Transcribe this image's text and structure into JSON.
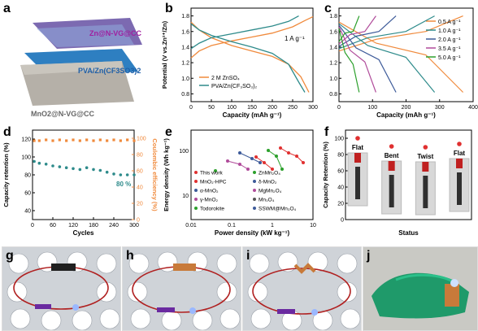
{
  "panels": {
    "a": {
      "letter": "a",
      "labels": [
        "Zn@N-VG@CC",
        "PVA/Zn(CF3SO3)2",
        "MnO2@N-VG@CC"
      ]
    },
    "b": {
      "letter": "b"
    },
    "c": {
      "letter": "c"
    },
    "d": {
      "letter": "d"
    },
    "e": {
      "letter": "e"
    },
    "f": {
      "letter": "f"
    },
    "g": {
      "letter": "g"
    },
    "h": {
      "letter": "h"
    },
    "i": {
      "letter": "i"
    },
    "j": {
      "letter": "j"
    }
  },
  "chart_data": [
    {
      "id": "b",
      "type": "line",
      "xlabel": "Capacity (mAh g⁻¹)",
      "ylabel": "Potential (V vs.Zn²⁺/Zn)",
      "xlim": [
        0,
        300
      ],
      "ylim": [
        0.7,
        1.9
      ],
      "xticks": [
        0,
        50,
        100,
        150,
        200,
        250,
        300
      ],
      "yticks": [
        0.8,
        1.0,
        1.2,
        1.4,
        1.6,
        1.8
      ],
      "annotation": "1 A g⁻¹",
      "series": [
        {
          "name": "2 M ZnSO₄",
          "color": "#f08a3c",
          "charge": [
            [
              0,
              1.26
            ],
            [
              20,
              1.35
            ],
            [
              50,
              1.42
            ],
            [
              100,
              1.48
            ],
            [
              150,
              1.53
            ],
            [
              200,
              1.58
            ],
            [
              250,
              1.66
            ],
            [
              280,
              1.74
            ],
            [
              300,
              1.79
            ]
          ],
          "discharge": [
            [
              0,
              1.72
            ],
            [
              20,
              1.62
            ],
            [
              50,
              1.52
            ],
            [
              100,
              1.42
            ],
            [
              150,
              1.35
            ],
            [
              200,
              1.28
            ],
            [
              240,
              1.18
            ],
            [
              270,
              1.02
            ],
            [
              290,
              0.82
            ]
          ]
        },
        {
          "name": "PVA/Zn(CF₃SO₃)₂",
          "color": "#2e8b8b",
          "charge": [
            [
              0,
              1.38
            ],
            [
              20,
              1.45
            ],
            [
              50,
              1.52
            ],
            [
              100,
              1.57
            ],
            [
              150,
              1.62
            ],
            [
              200,
              1.67
            ],
            [
              240,
              1.73
            ],
            [
              265,
              1.8
            ]
          ],
          "discharge": [
            [
              0,
              1.7
            ],
            [
              20,
              1.62
            ],
            [
              50,
              1.55
            ],
            [
              100,
              1.47
            ],
            [
              150,
              1.4
            ],
            [
              200,
              1.32
            ],
            [
              240,
              1.18
            ],
            [
              265,
              0.95
            ],
            [
              280,
              0.82
            ]
          ]
        }
      ]
    },
    {
      "id": "c",
      "type": "line",
      "xlabel": "Capacity (mAh g⁻¹)",
      "xlim": [
        0,
        400
      ],
      "ylim": [
        0.7,
        1.9
      ],
      "xticks": [
        0,
        100,
        200,
        300,
        400
      ],
      "yticks": [
        0.8,
        1.0,
        1.2,
        1.4,
        1.6,
        1.8
      ],
      "series": [
        {
          "name": "0.5 A g⁻¹",
          "color": "#f08a3c",
          "cap": 370
        },
        {
          "name": "1.0 A g⁻¹",
          "color": "#2e8b8b",
          "cap": 285
        },
        {
          "name": "2.0 A g⁻¹",
          "color": "#3c5a99",
          "cap": 170
        },
        {
          "name": "3.5 A g⁻¹",
          "color": "#b04b9a",
          "cap": 110
        },
        {
          "name": "5.0 A g⁻¹",
          "color": "#2ca02c",
          "cap": 60
        }
      ]
    },
    {
      "id": "d",
      "type": "scatter",
      "xlabel": "Cycles",
      "ylabel": "Capacity retention (%)",
      "ylabel2": "Coulombic efficiency (%)",
      "xlim": [
        0,
        300
      ],
      "ylim": [
        30,
        130
      ],
      "ylim2": [
        0,
        110
      ],
      "xticks": [
        0,
        60,
        120,
        180,
        240,
        300
      ],
      "yticks": [
        40,
        60,
        80,
        100,
        120
      ],
      "yticks2": [
        0,
        20,
        40,
        60,
        80,
        100
      ],
      "annotation": "80 %",
      "retention": [
        [
          5,
          95
        ],
        [
          20,
          93
        ],
        [
          40,
          92
        ],
        [
          60,
          90
        ],
        [
          80,
          89
        ],
        [
          100,
          88
        ],
        [
          120,
          87
        ],
        [
          140,
          86
        ],
        [
          160,
          88
        ],
        [
          180,
          86
        ],
        [
          200,
          85
        ],
        [
          220,
          83
        ],
        [
          240,
          81
        ],
        [
          260,
          80
        ],
        [
          280,
          80
        ],
        [
          300,
          80
        ]
      ],
      "efficiency": [
        [
          5,
          97
        ],
        [
          20,
          97
        ],
        [
          40,
          98
        ],
        [
          60,
          97
        ],
        [
          80,
          98
        ],
        [
          100,
          97
        ],
        [
          120,
          98
        ],
        [
          140,
          97
        ],
        [
          160,
          98
        ],
        [
          180,
          97
        ],
        [
          200,
          98
        ],
        [
          220,
          97
        ],
        [
          240,
          98
        ],
        [
          260,
          97
        ],
        [
          280,
          98
        ],
        [
          300,
          97
        ]
      ]
    },
    {
      "id": "e",
      "type": "scatter",
      "xlabel": "Power density (kW kg⁻¹)",
      "ylabel": "Energy density (Wh kg⁻¹)",
      "xticks_label": [
        "0.01",
        "0.1",
        "1",
        "10"
      ],
      "yticks_label": [
        "10",
        "100"
      ],
      "legend": [
        {
          "name": "This work",
          "color": "#e03030",
          "marker": "circle"
        },
        {
          "name": "MnO₂-HPC",
          "color": "#e03030",
          "marker": "circle"
        },
        {
          "name": "α-MnO₂",
          "color": "#3c5a99",
          "marker": "triangle"
        },
        {
          "name": "γ-MnO₂",
          "color": "#b04b9a",
          "marker": "triangle-down"
        },
        {
          "name": "Todorokite",
          "color": "#2ca02c",
          "marker": "diamond"
        },
        {
          "name": "ZnMn₂O₄",
          "color": "#2ca02c",
          "marker": "square"
        },
        {
          "name": "δ-MnO₂",
          "color": "#3c5a99",
          "marker": "triangle"
        },
        {
          "name": "MgMn₂O₄",
          "color": "#b04b9a",
          "marker": "circle"
        },
        {
          "name": "Mn₃O₄",
          "color": "#555555",
          "marker": "circle"
        },
        {
          "name": "SSWM@Mn₃O₄",
          "color": "#3c5a99",
          "marker": "triangle"
        }
      ]
    },
    {
      "id": "f",
      "type": "scatter",
      "xlabel": "Status",
      "ylabel": "Capacity Retention (%)",
      "ylim": [
        0,
        110
      ],
      "yticks": [
        0,
        20,
        40,
        60,
        80,
        100
      ],
      "categories": [
        "Flat",
        "Bent",
        "Twist",
        "Flat"
      ],
      "values": [
        100,
        90,
        89,
        93
      ]
    }
  ]
}
